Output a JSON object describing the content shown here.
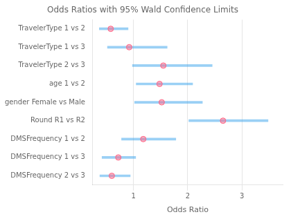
{
  "chart_data": {
    "type": "forest",
    "title": "Odds Ratios with 95% Wald Confidence Limits",
    "xlabel": "Odds Ratio",
    "categories": [
      "TravelerType 1 vs 2",
      "TravelerType 1 vs 3",
      "TravelerType 2 vs 3",
      "age 1 vs 2",
      "gender Female vs Male",
      "Round R1 vs R2",
      "DMSFrequency 1 vs 2",
      "DMSFrequency 1 vs 3",
      "DMSFrequency 2 vs 3"
    ],
    "values": [
      0.58,
      0.92,
      1.55,
      1.48,
      1.52,
      2.65,
      1.18,
      0.72,
      0.6
    ],
    "ci_lower": [
      0.37,
      0.52,
      0.98,
      1.05,
      1.02,
      2.02,
      0.78,
      0.42,
      0.38
    ],
    "ci_upper": [
      0.9,
      1.62,
      2.45,
      2.09,
      2.27,
      3.48,
      1.78,
      1.04,
      0.94
    ],
    "xlim": [
      0.25,
      3.75
    ],
    "xticks": [
      1,
      2,
      3
    ],
    "grid": "x"
  }
}
